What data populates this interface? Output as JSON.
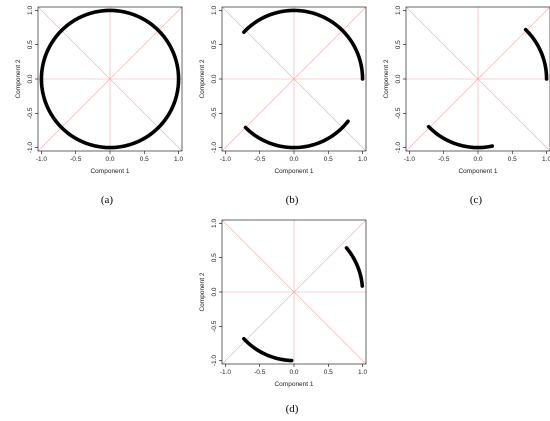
{
  "chart_data": [
    {
      "type": "scatter",
      "label": "(a)",
      "xlabel": "Component 1",
      "ylabel": "Component 2",
      "xlim": [
        -1.05,
        1.05
      ],
      "ylim": [
        -1.05,
        1.05
      ],
      "xticks": [
        -1.0,
        -0.5,
        0.0,
        0.5,
        1.0
      ],
      "yticks": [
        -1.0,
        -0.5,
        0.0,
        0.5,
        1.0
      ],
      "xtick_labels": [
        "-1.0",
        "-0.5",
        "0.0",
        "0.5",
        "1.0"
      ],
      "ytick_labels": [
        "-1.0",
        "-0.5",
        "0.0",
        "0.5",
        "1.0"
      ],
      "reference_lines": [
        "x=0",
        "y=0",
        "y=x",
        "y=-x"
      ],
      "reference_color": "#f4a3a3",
      "point_color": "#000000",
      "arcs": [
        {
          "radius": 1.0,
          "start_deg": 0,
          "end_deg": 360
        }
      ]
    },
    {
      "type": "scatter",
      "label": "(b)",
      "xlabel": "Component 1",
      "ylabel": "Component 2",
      "xlim": [
        -1.05,
        1.05
      ],
      "ylim": [
        -1.05,
        1.05
      ],
      "xticks": [
        -1.0,
        -0.5,
        0.0,
        0.5,
        1.0
      ],
      "yticks": [
        -1.0,
        -0.5,
        0.0,
        0.5,
        1.0
      ],
      "xtick_labels": [
        "-1.0",
        "-0.5",
        "0.0",
        "0.5",
        "1.0"
      ],
      "ytick_labels": [
        "-1.0",
        "-0.5",
        "0.0",
        "0.5",
        "1.0"
      ],
      "reference_lines": [
        "x=0",
        "y=0",
        "y=x",
        "y=-x"
      ],
      "reference_color": "#f4a3a3",
      "point_color": "#000000",
      "arcs": [
        {
          "radius": 1.0,
          "start_deg": 0,
          "end_deg": 137
        },
        {
          "radius": 1.0,
          "start_deg": 225,
          "end_deg": 322
        }
      ]
    },
    {
      "type": "scatter",
      "label": "(c)",
      "xlabel": "Component 1",
      "ylabel": "Component 2",
      "xlim": [
        -1.05,
        1.05
      ],
      "ylim": [
        -1.05,
        1.05
      ],
      "xticks": [
        -1.0,
        -0.5,
        0.0,
        0.5,
        1.0
      ],
      "yticks": [
        -1.0,
        -0.5,
        0.0,
        0.5,
        1.0
      ],
      "xtick_labels": [
        "-1.0",
        "-0.5",
        "0.0",
        "0.5",
        "1.0"
      ],
      "ytick_labels": [
        "-1.0",
        "-0.5",
        "0.0",
        "0.5",
        "1.0"
      ],
      "reference_lines": [
        "x=0",
        "y=0",
        "y=x",
        "y=-x"
      ],
      "reference_color": "#f4a3a3",
      "point_color": "#000000",
      "arcs": [
        {
          "radius": 1.0,
          "start_deg": 0,
          "end_deg": 46
        },
        {
          "radius": 1.0,
          "start_deg": 224,
          "end_deg": 282
        }
      ]
    },
    {
      "type": "scatter",
      "label": "(d)",
      "xlabel": "Component 1",
      "ylabel": "Component 2",
      "xlim": [
        -1.05,
        1.05
      ],
      "ylim": [
        -1.05,
        1.05
      ],
      "xticks": [
        -1.0,
        -0.5,
        0.0,
        0.5,
        1.0
      ],
      "yticks": [
        -1.0,
        -0.5,
        0.0,
        0.5,
        1.0
      ],
      "xtick_labels": [
        "-1.0",
        "-0.5",
        "0.0",
        "0.5",
        "1.0"
      ],
      "ytick_labels": [
        "-1.0",
        "-0.5",
        "0.0",
        "0.5",
        "1.0"
      ],
      "reference_lines": [
        "x=0",
        "y=0",
        "y=x",
        "y=-x"
      ],
      "reference_color": "#f4a3a3",
      "point_color": "#000000",
      "arcs": [
        {
          "radius": 1.0,
          "start_deg": 5,
          "end_deg": 40
        },
        {
          "radius": 1.0,
          "start_deg": 223,
          "end_deg": 268
        }
      ]
    }
  ]
}
